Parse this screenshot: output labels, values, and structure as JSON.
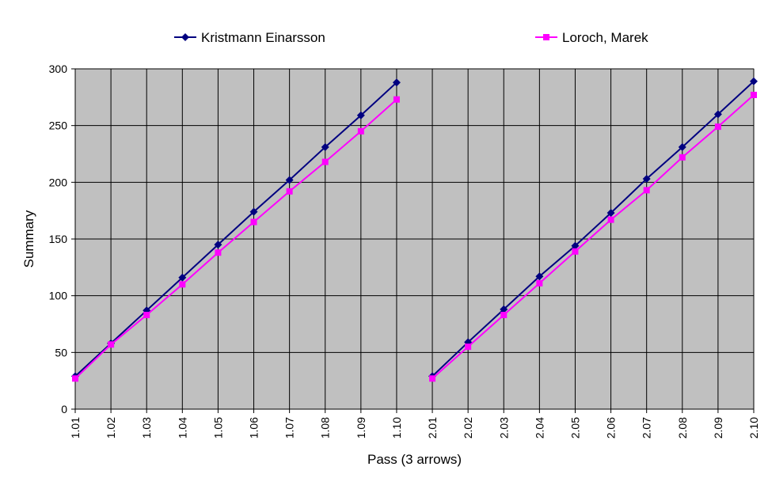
{
  "chart_data": {
    "type": "line",
    "title": "",
    "xlabel": "Pass (3 arrows)",
    "ylabel": "Summary",
    "ylim": [
      0,
      300
    ],
    "yticks": [
      "0",
      "50",
      "100",
      "150",
      "200",
      "250",
      "300"
    ],
    "grid": true,
    "legend": "top",
    "categories": [
      "1.01",
      "1.02",
      "1.03",
      "1.04",
      "1.05",
      "1.06",
      "1.07",
      "1.08",
      "1.09",
      "1.10",
      "2.01",
      "2.02",
      "2.03",
      "2.04",
      "2.05",
      "2.06",
      "2.07",
      "2.08",
      "2.09",
      "2.10"
    ],
    "series": [
      {
        "name": "Kristmann Einarsson",
        "color": "#000080",
        "marker": "diamond",
        "values": [
          29,
          58,
          87,
          116,
          145,
          174,
          202,
          231,
          259,
          288,
          29,
          59,
          88,
          117,
          144,
          173,
          203,
          231,
          260,
          289
        ]
      },
      {
        "name": "Loroch, Marek",
        "color": "#ff00ff",
        "marker": "square",
        "values": [
          27,
          57,
          83,
          110,
          138,
          165,
          192,
          218,
          245,
          273,
          27,
          55,
          83,
          111,
          139,
          167,
          193,
          222,
          249,
          277
        ]
      }
    ],
    "segments": [
      [
        0,
        9
      ],
      [
        10,
        19
      ]
    ],
    "plot_background": "#c0c0c0",
    "grid_color": "#000000"
  }
}
